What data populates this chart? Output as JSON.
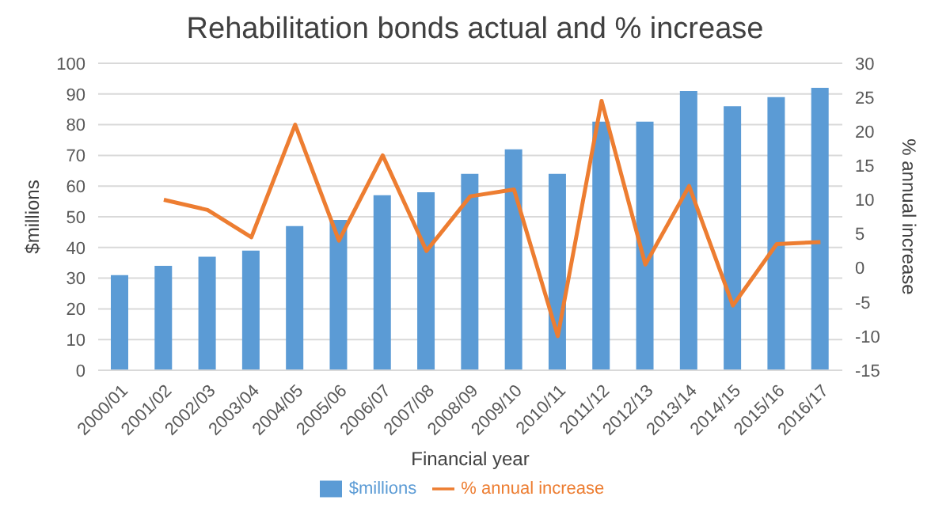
{
  "chart_data": {
    "type": "bar",
    "title": "Rehabilitation bonds actual and % increase",
    "xlabel": "Financial year",
    "ylabel": "$millions",
    "y2label": "% annual increase",
    "categories": [
      "2000/01",
      "2001/02",
      "2002/03",
      "2003/04",
      "2004/05",
      "2005/06",
      "2006/07",
      "2007/08",
      "2008/09",
      "2009/10",
      "2010/11",
      "2011/12",
      "2012/13",
      "2013/14",
      "2014/15",
      "2015/16",
      "2016/17"
    ],
    "series": [
      {
        "name": "$millions",
        "color": "#5b9bd5",
        "values": [
          31,
          34,
          37,
          39,
          47,
          49,
          57,
          58,
          64,
          72,
          64,
          81,
          81,
          91,
          86,
          89,
          92
        ]
      },
      {
        "name": "% annual increase",
        "type": "line",
        "axis": "y2",
        "color": "#ed7d31",
        "values": [
          null,
          10,
          8.5,
          4.5,
          21,
          4,
          16.5,
          2.5,
          10.5,
          11.5,
          -10,
          24.5,
          0.5,
          12,
          -5.5,
          3.5,
          3.8
        ]
      }
    ],
    "ylim": [
      0,
      100
    ],
    "yticks": [
      0,
      10,
      20,
      30,
      40,
      50,
      60,
      70,
      80,
      90,
      100
    ],
    "y2lim": [
      -15,
      30
    ],
    "y2ticks": [
      -15,
      -10,
      -5,
      0,
      5,
      10,
      15,
      20,
      25,
      30
    ],
    "grid": "y",
    "legend": "bottom",
    "marker": "none",
    "line_style": "solid"
  }
}
